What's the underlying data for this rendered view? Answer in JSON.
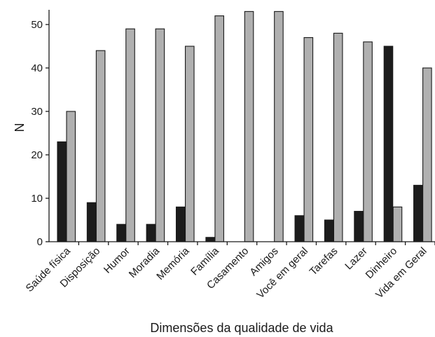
{
  "chart_data": {
    "type": "bar",
    "title": "",
    "xlabel": "Dimensões da qualidade de vida",
    "ylabel": "N",
    "ylim": [
      0,
      53
    ],
    "yticks": [
      0,
      10,
      20,
      30,
      40,
      50
    ],
    "grid": false,
    "legend": "none",
    "categories": [
      "Saúde física",
      "Disposição",
      "Humor",
      "Moradia",
      "Memória",
      "Família",
      "Casamento",
      "Amigos",
      "Você em geral",
      "Tarefas",
      "Lazer",
      "Dinheiro",
      "Vida em Geral"
    ],
    "series": [
      {
        "color": "#1c1c1c",
        "values": [
          23,
          9,
          4,
          4,
          8,
          1,
          0,
          0,
          6,
          5,
          7,
          45,
          13
        ]
      },
      {
        "color": "#b0b0b0",
        "values": [
          30,
          44,
          49,
          49,
          45,
          52,
          53,
          53,
          47,
          48,
          46,
          8,
          40
        ]
      }
    ]
  }
}
